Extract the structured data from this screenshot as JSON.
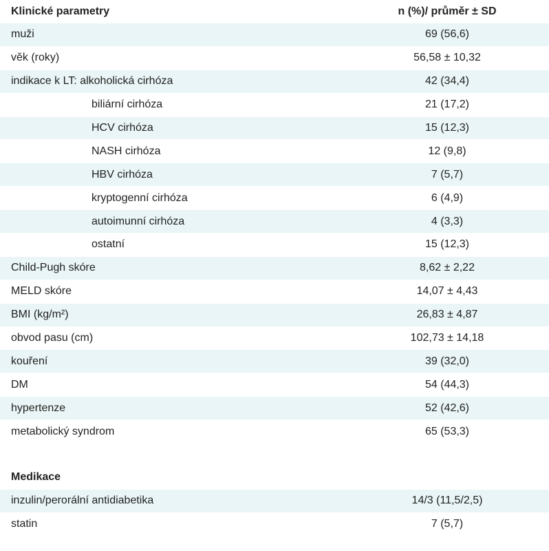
{
  "header": {
    "label": "Klinické parametry",
    "value": "n (%)/ průměr ± SD"
  },
  "rows": [
    {
      "label": "muži",
      "value": "69 (56,6)"
    },
    {
      "label": "věk (roky)",
      "value": "56,58 ± 10,32"
    },
    {
      "label": "indikace k LT: alkoholická cirhóza",
      "value": "42 (34,4)"
    },
    {
      "label": "biliární cirhóza",
      "value": "21 (17,2)"
    },
    {
      "label": "HCV cirhóza",
      "value": "15 (12,3)"
    },
    {
      "label": "NASH cirhóza",
      "value": "12 (9,8)"
    },
    {
      "label": "HBV cirhóza",
      "value": "7 (5,7)"
    },
    {
      "label": "kryptogenní cirhóza",
      "value": "6 (4,9)"
    },
    {
      "label": "autoimunní cirhóza",
      "value": "4 (3,3)"
    },
    {
      "label": "ostatní",
      "value": "15 (12,3)"
    },
    {
      "label": "Child-Pugh skóre",
      "value": "8,62 ± 2,22"
    },
    {
      "label": "MELD skóre",
      "value": "14,07 ± 4,43"
    },
    {
      "label": "BMI (kg/m²)",
      "value": "26,83 ± 4,87"
    },
    {
      "label": "obvod pasu (cm)",
      "value": "102,73 ± 14,18"
    },
    {
      "label": "kouření",
      "value": "39 (32,0)"
    },
    {
      "label": "DM",
      "value": "54 (44,3)"
    },
    {
      "label": "hypertenze",
      "value": "52 (42,6)"
    },
    {
      "label": "metabolický syndrom",
      "value": "65 (53,3)"
    }
  ],
  "medication": {
    "title": "Medikace",
    "rows": [
      {
        "label": "inzulin/perorální antidiabetika",
        "value": "14/3 (11,5/2,5)"
      },
      {
        "label": "statin",
        "value": "7 (5,7)"
      }
    ]
  },
  "colors": {
    "shaded_row": "#e9f5f6",
    "text": "#222222"
  }
}
